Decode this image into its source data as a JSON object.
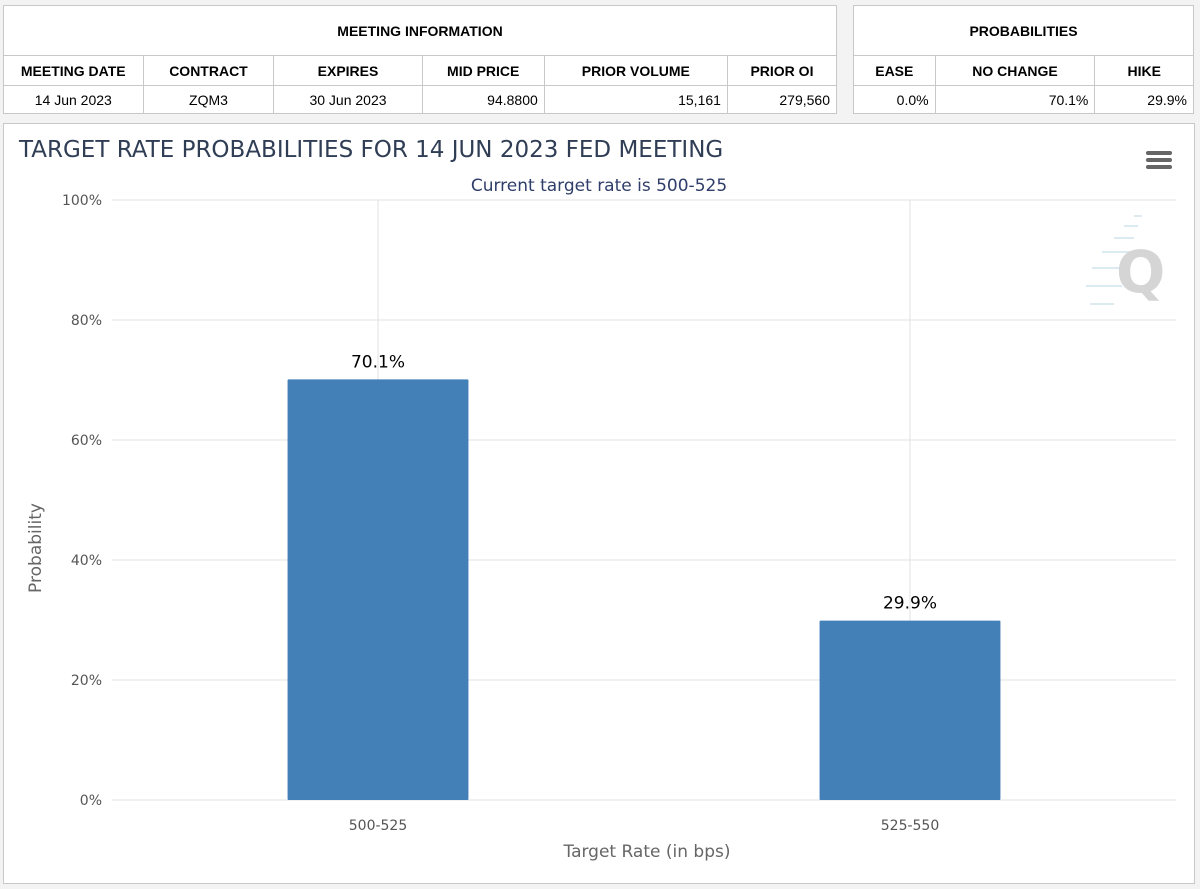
{
  "meeting_info": {
    "title": "MEETING INFORMATION",
    "headers": [
      "MEETING DATE",
      "CONTRACT",
      "EXPIRES",
      "MID PRICE",
      "PRIOR VOLUME",
      "PRIOR OI"
    ],
    "row": [
      "14 Jun 2023",
      "ZQM3",
      "30 Jun 2023",
      "94.8800",
      "15,161",
      "279,560"
    ]
  },
  "probabilities": {
    "title": "PROBABILITIES",
    "headers": [
      "EASE",
      "NO CHANGE",
      "HIKE"
    ],
    "row": [
      "0.0%",
      "70.1%",
      "29.9%"
    ]
  },
  "menu_icon": "hamburger-menu-icon",
  "watermark_icon": "q-logo-watermark",
  "chart_data": {
    "type": "bar",
    "title": "TARGET RATE PROBABILITIES FOR 14 JUN 2023 FED MEETING",
    "subtitle": "Current target rate is 500-525",
    "xlabel": "Target Rate (in bps)",
    "ylabel": "Probability",
    "categories": [
      "500-525",
      "525-550"
    ],
    "values": [
      70.1,
      29.9
    ],
    "data_labels": [
      "70.1%",
      "29.9%"
    ],
    "ylim": [
      0,
      100
    ],
    "yticks": [
      "0%",
      "20%",
      "40%",
      "60%",
      "80%",
      "100%"
    ],
    "grid": true,
    "bar_color": "#4380b7"
  }
}
